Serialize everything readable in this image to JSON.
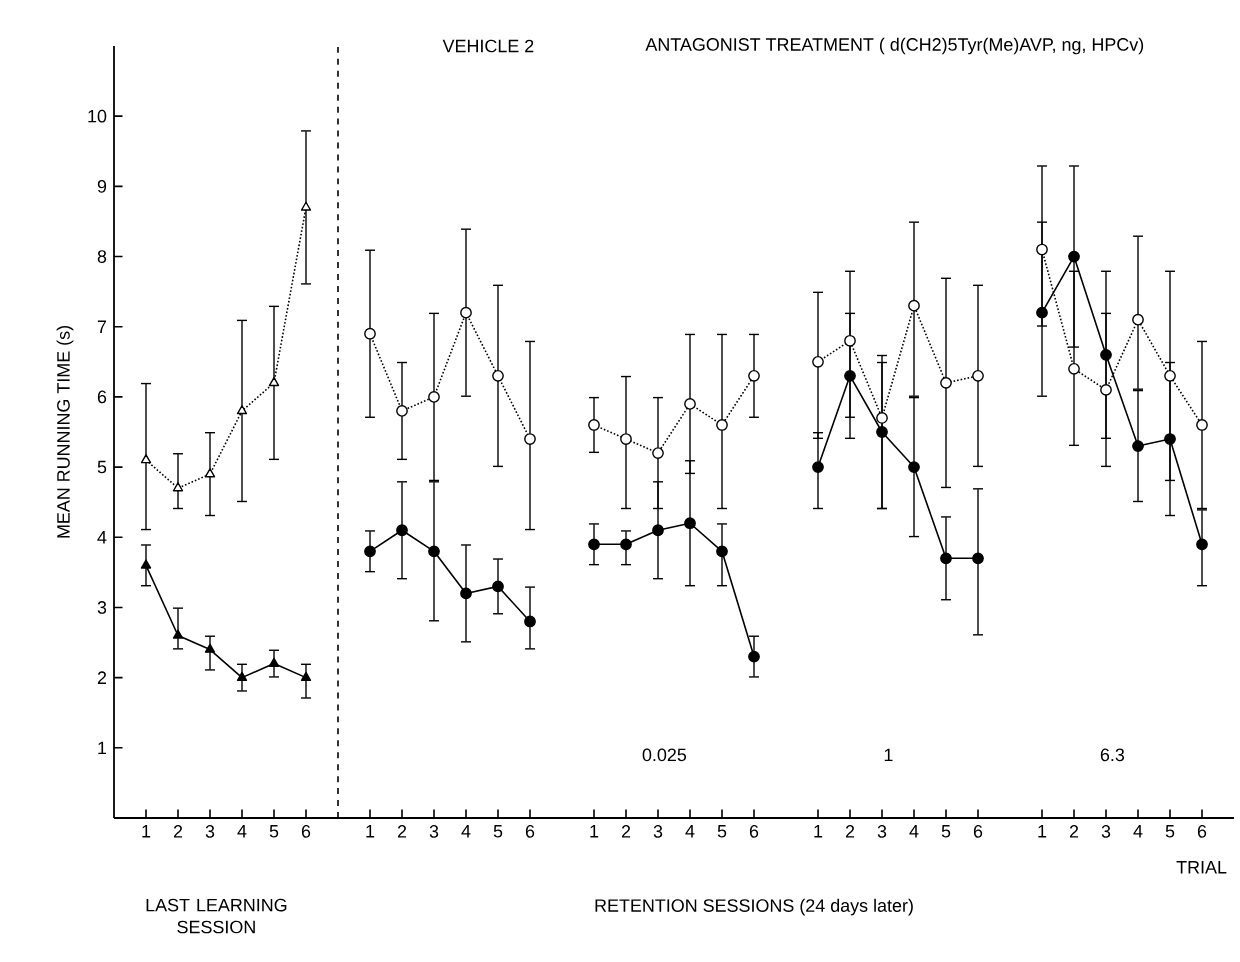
{
  "chart_data": {
    "type": "line",
    "ylabel": "MEAN RUNNING TIME (s)",
    "xlabel": "TRIAL",
    "annotations": [
      "VEHICLE 2",
      "ANTAGONIST TREATMENT ( d(CH2)5Tyr(Me)AVP, ng, HPCv)",
      "0.025",
      "1",
      "6.3",
      "LAST LEARNING SESSION",
      "RETENTION SESSIONS (24 days later)"
    ],
    "categories": [
      "1",
      "2",
      "3",
      "4",
      "5",
      "6",
      null,
      "1",
      "2",
      "3",
      "4",
      "5",
      "6",
      null,
      "1",
      "2",
      "3",
      "4",
      "5",
      "6",
      null,
      "1",
      "2",
      "3",
      "4",
      "5",
      "6",
      null,
      "1",
      "2",
      "3",
      "4",
      "5",
      "6"
    ],
    "ylim": [
      0,
      11
    ],
    "yticks": [
      1,
      2,
      3,
      4,
      5,
      6,
      7,
      8,
      9,
      10
    ],
    "series": [
      {
        "color": "#000000",
        "marker": "triangle",
        "line_style": "dotted",
        "values": [
          5.1,
          4.7,
          4.9,
          5.8,
          6.2,
          8.7,
          null,
          null,
          null,
          null,
          null,
          null,
          null,
          null,
          null,
          null,
          null,
          null,
          null,
          null,
          null,
          null,
          null,
          null,
          null,
          null,
          null,
          null,
          null,
          null,
          null,
          null,
          null,
          null
        ],
        "errors": [
          [
            4.1,
            6.2
          ],
          [
            4.4,
            5.2
          ],
          [
            4.3,
            5.5
          ],
          [
            4.5,
            7.1
          ],
          [
            5.1,
            7.3
          ],
          [
            7.6,
            9.8
          ],
          null,
          null,
          null,
          null,
          null,
          null,
          null,
          null,
          null,
          null,
          null,
          null,
          null,
          null,
          null,
          null,
          null,
          null,
          null,
          null,
          null,
          null,
          null,
          null,
          null,
          null,
          null,
          null
        ]
      },
      {
        "color": "#000000",
        "marker": "triangle",
        "line_style": "solid",
        "values": [
          3.6,
          2.6,
          2.4,
          2.0,
          2.2,
          2.0,
          null,
          null,
          null,
          null,
          null,
          null,
          null,
          null,
          null,
          null,
          null,
          null,
          null,
          null,
          null,
          null,
          null,
          null,
          null,
          null,
          null,
          null,
          null,
          null,
          null,
          null,
          null,
          null
        ],
        "errors": [
          [
            3.3,
            3.9
          ],
          [
            2.4,
            3.0
          ],
          [
            2.1,
            2.6
          ],
          [
            1.8,
            2.2
          ],
          [
            2.0,
            2.4
          ],
          [
            1.7,
            2.2
          ],
          null,
          null,
          null,
          null,
          null,
          null,
          null,
          null,
          null,
          null,
          null,
          null,
          null,
          null,
          null,
          null,
          null,
          null,
          null,
          null,
          null,
          null,
          null,
          null,
          null,
          null,
          null,
          null
        ]
      },
      {
        "color": "#000000",
        "marker": "circle",
        "line_style": "dotted",
        "values": [
          null,
          null,
          null,
          null,
          null,
          null,
          null,
          6.9,
          5.8,
          6.0,
          7.2,
          6.3,
          5.4,
          null,
          5.6,
          5.4,
          5.2,
          5.9,
          5.6,
          6.3,
          null,
          6.5,
          6.8,
          5.7,
          7.3,
          6.2,
          6.3,
          null,
          8.1,
          6.4,
          6.1,
          7.1,
          6.3,
          5.6
        ],
        "errors": [
          null,
          null,
          null,
          null,
          null,
          null,
          null,
          [
            5.7,
            8.1
          ],
          [
            5.1,
            6.5
          ],
          [
            4.8,
            7.2
          ],
          [
            6.0,
            8.4
          ],
          [
            5.0,
            7.6
          ],
          [
            4.1,
            6.8
          ],
          null,
          [
            5.2,
            6.0
          ],
          [
            4.4,
            6.3
          ],
          [
            4.4,
            6.0
          ],
          [
            4.9,
            6.9
          ],
          [
            4.4,
            6.9
          ],
          [
            5.7,
            6.9
          ],
          null,
          [
            5.4,
            7.5
          ],
          [
            5.7,
            7.8
          ],
          [
            4.4,
            6.6
          ],
          [
            6.0,
            8.5
          ],
          [
            4.7,
            7.7
          ],
          [
            5.0,
            7.6
          ],
          null,
          [
            7.0,
            9.3
          ],
          [
            5.3,
            7.8
          ],
          [
            5.0,
            7.8
          ],
          [
            6.1,
            8.3
          ],
          [
            4.3,
            7.8
          ],
          [
            4.4,
            6.8
          ]
        ]
      },
      {
        "color": "#000000",
        "marker": "circle",
        "line_style": "solid",
        "values": [
          null,
          null,
          null,
          null,
          null,
          null,
          null,
          3.8,
          4.1,
          3.8,
          3.2,
          3.3,
          2.8,
          null,
          3.9,
          3.9,
          4.1,
          4.2,
          3.8,
          2.3,
          null,
          5.0,
          6.3,
          5.5,
          5.0,
          3.7,
          3.7,
          null,
          7.2,
          8.0,
          6.6,
          5.3,
          5.4,
          3.9
        ],
        "errors": [
          null,
          null,
          null,
          null,
          null,
          null,
          null,
          [
            3.5,
            4.1
          ],
          [
            3.4,
            4.8
          ],
          [
            2.8,
            4.8
          ],
          [
            2.5,
            3.9
          ],
          [
            2.9,
            3.7
          ],
          [
            2.4,
            3.3
          ],
          null,
          [
            3.6,
            4.2
          ],
          [
            3.6,
            4.1
          ],
          [
            3.4,
            4.8
          ],
          [
            3.3,
            5.1
          ],
          [
            3.3,
            4.2
          ],
          [
            2.0,
            2.6
          ],
          null,
          [
            4.4,
            5.5
          ],
          [
            5.4,
            7.2
          ],
          [
            4.4,
            6.5
          ],
          [
            4.0,
            6.0
          ],
          [
            3.1,
            4.3
          ],
          [
            2.6,
            4.7
          ],
          null,
          [
            6.0,
            8.5
          ],
          [
            6.7,
            9.3
          ],
          [
            5.4,
            7.2
          ],
          [
            4.5,
            6.1
          ],
          [
            4.8,
            6.5
          ],
          [
            3.3,
            4.4
          ]
        ]
      }
    ]
  }
}
